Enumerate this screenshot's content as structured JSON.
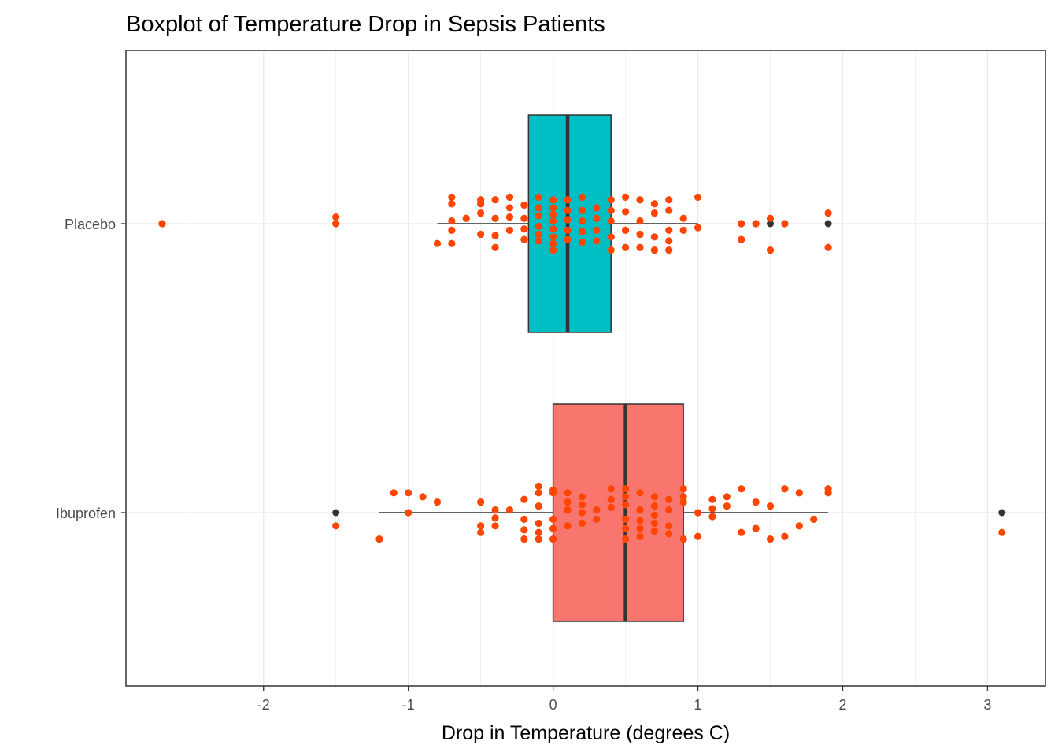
{
  "chart_data": {
    "type": "boxplot",
    "orientation": "horizontal",
    "title": "Boxplot of Temperature Drop in Sepsis Patients",
    "xlabel": "Drop in Temperature (degrees C)",
    "ylabel": "",
    "xlim": [
      -2.95,
      3.4
    ],
    "x_ticks": [
      -2,
      -1,
      0,
      1,
      2,
      3
    ],
    "x_tick_labels": [
      "-2",
      "-1",
      "0",
      "1",
      "2",
      "3"
    ],
    "categories": [
      "Placebo",
      "Ibuprofen"
    ],
    "grid": true,
    "legend": "none",
    "point_color": "#FF4500",
    "outlier_color": "#333333",
    "series": [
      {
        "group": "Placebo",
        "fill": "#00BFC4",
        "box": {
          "q1": -0.17,
          "median": 0.1,
          "q3": 0.4,
          "whisker_low": -0.8,
          "whisker_high": 1.0
        },
        "outliers": [
          -2.7,
          -1.5,
          1.3,
          1.4,
          1.5,
          1.6,
          1.9
        ],
        "points": [
          [
            -2.7,
            0.0
          ],
          [
            -1.5,
            0.05
          ],
          [
            -1.5,
            0.0
          ],
          [
            -0.8,
            -0.15
          ],
          [
            -0.7,
            -0.15
          ],
          [
            -0.7,
            -0.05
          ],
          [
            -0.7,
            0.02
          ],
          [
            -0.7,
            0.15
          ],
          [
            -0.7,
            0.2
          ],
          [
            -0.6,
            0.04
          ],
          [
            -0.5,
            0.08
          ],
          [
            -0.5,
            0.15
          ],
          [
            -0.5,
            0.18
          ],
          [
            -0.5,
            -0.08
          ],
          [
            -0.4,
            0.18
          ],
          [
            -0.4,
            0.04
          ],
          [
            -0.4,
            -0.09
          ],
          [
            -0.4,
            -0.18
          ],
          [
            -0.3,
            0.05
          ],
          [
            -0.3,
            -0.05
          ],
          [
            -0.3,
            0.12
          ],
          [
            -0.3,
            0.2
          ],
          [
            -0.3,
            0.2
          ],
          [
            -0.2,
            0.14
          ],
          [
            -0.2,
            0.04
          ],
          [
            -0.2,
            -0.04
          ],
          [
            -0.2,
            -0.12
          ],
          [
            -0.1,
            0.2
          ],
          [
            -0.1,
            0.12
          ],
          [
            -0.1,
            0.06
          ],
          [
            -0.1,
            -0.02
          ],
          [
            -0.1,
            -0.08
          ],
          [
            -0.1,
            -0.13
          ],
          [
            0.0,
            0.18
          ],
          [
            0.0,
            0.12
          ],
          [
            0.0,
            0.07
          ],
          [
            0.0,
            0.02
          ],
          [
            0.0,
            -0.04
          ],
          [
            0.0,
            -0.1
          ],
          [
            0.0,
            -0.15
          ],
          [
            0.0,
            -0.2
          ],
          [
            0.1,
            0.18
          ],
          [
            0.1,
            0.1
          ],
          [
            0.1,
            0.03
          ],
          [
            0.1,
            -0.05
          ],
          [
            0.1,
            -0.12
          ],
          [
            0.2,
            0.2
          ],
          [
            0.2,
            0.1
          ],
          [
            0.2,
            0.02
          ],
          [
            0.2,
            -0.06
          ],
          [
            0.2,
            -0.14
          ],
          [
            0.3,
            0.12
          ],
          [
            0.3,
            0.04
          ],
          [
            0.3,
            -0.05
          ],
          [
            0.3,
            -0.13
          ],
          [
            0.4,
            0.18
          ],
          [
            0.4,
            0.1
          ],
          [
            0.4,
            0.02
          ],
          [
            0.4,
            -0.1
          ],
          [
            0.4,
            -0.2
          ],
          [
            0.5,
            0.2
          ],
          [
            0.5,
            0.09
          ],
          [
            0.5,
            -0.05
          ],
          [
            0.5,
            -0.18
          ],
          [
            0.6,
            0.18
          ],
          [
            0.6,
            0.02
          ],
          [
            0.6,
            -0.08
          ],
          [
            0.6,
            -0.18
          ],
          [
            0.7,
            0.15
          ],
          [
            0.7,
            0.08
          ],
          [
            0.7,
            -0.1
          ],
          [
            0.7,
            -0.2
          ],
          [
            0.8,
            0.18
          ],
          [
            0.8,
            0.1
          ],
          [
            0.8,
            -0.05
          ],
          [
            0.8,
            -0.13
          ],
          [
            0.8,
            -0.2
          ],
          [
            0.9,
            0.04
          ],
          [
            0.9,
            -0.05
          ],
          [
            1.0,
            0.2
          ],
          [
            1.0,
            -0.03
          ],
          [
            1.3,
            0.0
          ],
          [
            1.3,
            -0.12
          ],
          [
            1.4,
            0.0
          ],
          [
            1.5,
            0.04
          ],
          [
            1.5,
            -0.2
          ],
          [
            1.6,
            0.0
          ],
          [
            1.9,
            0.08
          ],
          [
            1.9,
            -0.18
          ]
        ]
      },
      {
        "group": "Ibuprofen",
        "fill": "#F8766D",
        "box": {
          "q1": 0.0,
          "median": 0.5,
          "q3": 0.9,
          "whisker_low": -1.2,
          "whisker_high": 1.9
        },
        "outliers": [
          -1.5,
          3.1
        ],
        "points": [
          [
            -1.5,
            -0.1
          ],
          [
            -1.2,
            -0.2
          ],
          [
            -1.1,
            0.15
          ],
          [
            -1.0,
            0.15
          ],
          [
            -1.0,
            0.0
          ],
          [
            -0.9,
            0.12
          ],
          [
            -0.8,
            0.08
          ],
          [
            -0.5,
            0.08
          ],
          [
            -0.5,
            -0.1
          ],
          [
            -0.5,
            -0.15
          ],
          [
            -0.4,
            0.02
          ],
          [
            -0.4,
            -0.04
          ],
          [
            -0.4,
            -0.1
          ],
          [
            -0.3,
            0.02
          ],
          [
            -0.2,
            0.1
          ],
          [
            -0.2,
            -0.05
          ],
          [
            -0.2,
            -0.13
          ],
          [
            -0.2,
            -0.2
          ],
          [
            -0.1,
            0.2
          ],
          [
            -0.1,
            0.15
          ],
          [
            -0.1,
            0.05
          ],
          [
            -0.1,
            -0.08
          ],
          [
            -0.1,
            -0.15
          ],
          [
            -0.1,
            -0.2
          ],
          [
            0.0,
            0.17
          ],
          [
            0.0,
            0.15
          ],
          [
            0.0,
            -0.05
          ],
          [
            0.0,
            -0.12
          ],
          [
            0.0,
            -0.2
          ],
          [
            0.1,
            0.15
          ],
          [
            0.1,
            0.08
          ],
          [
            0.1,
            0.02
          ],
          [
            0.1,
            -0.1
          ],
          [
            0.2,
            0.12
          ],
          [
            0.2,
            0.06
          ],
          [
            0.2,
            0.0
          ],
          [
            0.2,
            -0.08
          ],
          [
            0.3,
            0.02
          ],
          [
            0.3,
            -0.05
          ],
          [
            0.4,
            0.18
          ],
          [
            0.4,
            0.1
          ],
          [
            0.4,
            0.04
          ],
          [
            0.5,
            0.18
          ],
          [
            0.5,
            0.12
          ],
          [
            0.5,
            0.06
          ],
          [
            0.5,
            -0.05
          ],
          [
            0.5,
            -0.12
          ],
          [
            0.5,
            -0.2
          ],
          [
            0.6,
            0.15
          ],
          [
            0.6,
            0.02
          ],
          [
            0.6,
            -0.06
          ],
          [
            0.6,
            -0.12
          ],
          [
            0.6,
            -0.18
          ],
          [
            0.7,
            0.12
          ],
          [
            0.7,
            0.05
          ],
          [
            0.7,
            -0.02
          ],
          [
            0.7,
            -0.08
          ],
          [
            0.7,
            -0.14
          ],
          [
            0.8,
            0.1
          ],
          [
            0.8,
            0.02
          ],
          [
            0.8,
            -0.1
          ],
          [
            0.8,
            -0.16
          ],
          [
            0.9,
            0.18
          ],
          [
            0.9,
            0.12
          ],
          [
            0.9,
            0.08
          ],
          [
            0.9,
            -0.2
          ],
          [
            1.0,
            0.0
          ],
          [
            1.0,
            -0.18
          ],
          [
            1.1,
            0.1
          ],
          [
            1.1,
            0.03
          ],
          [
            1.1,
            -0.03
          ],
          [
            1.2,
            0.12
          ],
          [
            1.2,
            0.05
          ],
          [
            1.3,
            0.18
          ],
          [
            1.3,
            -0.15
          ],
          [
            1.4,
            0.08
          ],
          [
            1.4,
            -0.12
          ],
          [
            1.5,
            0.05
          ],
          [
            1.5,
            -0.2
          ],
          [
            1.6,
            0.18
          ],
          [
            1.6,
            -0.18
          ],
          [
            1.7,
            0.15
          ],
          [
            1.7,
            -0.1
          ],
          [
            1.8,
            -0.05
          ],
          [
            1.9,
            0.18
          ],
          [
            1.9,
            0.15
          ],
          [
            3.1,
            -0.15
          ]
        ]
      }
    ]
  }
}
